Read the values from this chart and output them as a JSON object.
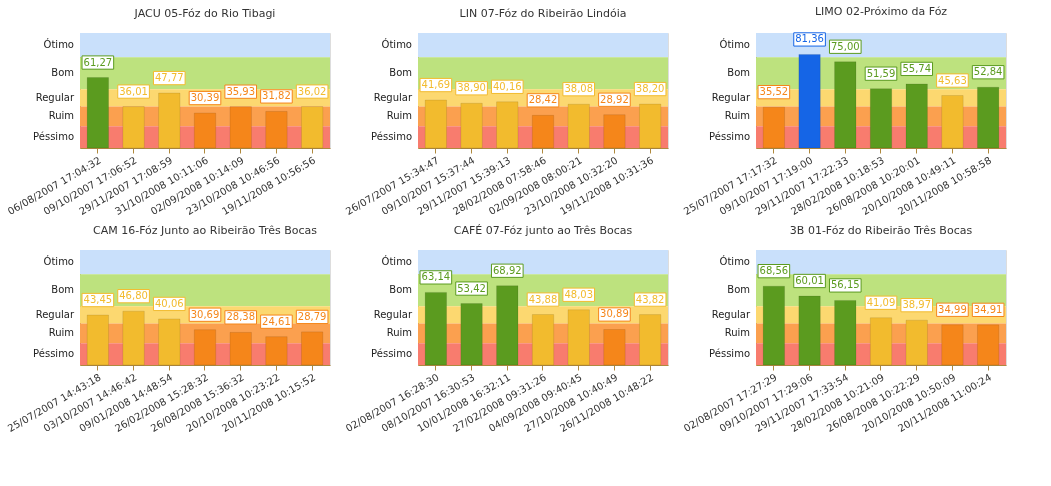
{
  "chart_data": [
    {
      "type": "bar",
      "title": "JACU 05-Fóz do Rio Tibagi",
      "categories": [
        "06/08/2007 17:04:32",
        "09/10/2007 17:06:52",
        "29/11/2007 17:08:59",
        "31/10/2008 10:11:06",
        "02/09/2008 10:14:09",
        "23/10/2008 10:46:56",
        "19/11/2008 10:56:56"
      ],
      "values": [
        61.27,
        36.01,
        47.77,
        30.39,
        35.93,
        31.82,
        36.02
      ],
      "value_labels": [
        "61,27",
        "36,01",
        "47,77",
        "30,39",
        "35,93",
        "31,82",
        "36,02"
      ],
      "colors": [
        "#5b9b1f",
        "#f2bb2e",
        "#f2bb2e",
        "#f5861a",
        "#f5861a",
        "#f5861a",
        "#f2bb2e"
      ],
      "tick_labels": "x",
      "bands": [
        {
          "axis": "y",
          "from": 79,
          "to": 100,
          "label": "Ótimo",
          "color": "#c9e0fb"
        },
        {
          "axis": "y",
          "from": 51,
          "to": 79,
          "label": "Bom",
          "color": "#bde27e"
        },
        {
          "axis": "y",
          "from": 36,
          "to": 51,
          "label": "Regular",
          "color": "#fcd870"
        },
        {
          "axis": "y",
          "from": 19,
          "to": 36,
          "label": "Ruim",
          "color": "#fba04f"
        },
        {
          "axis": "y",
          "from": 0,
          "to": 19,
          "label": "Péssimo",
          "color": "#f87c6e"
        }
      ],
      "grid": false
    },
    {
      "type": "bar",
      "title": "LIN 07-Fóz do Ribeirão Lindóia",
      "categories": [
        "26/07/2007 15:34:47",
        "09/10/2007 15:37:44",
        "29/11/2007 15:39:13",
        "28/02/2008 07:58:46",
        "02/09/2008 08:00:21",
        "23/10/2008 10:32:20",
        "19/11/2008 10:31:36"
      ],
      "values": [
        41.69,
        38.9,
        40.16,
        28.42,
        38.08,
        28.92,
        38.2
      ],
      "value_labels": [
        "41,69",
        "38,90",
        "40,16",
        "28,42",
        "38,08",
        "28,92",
        "38,20"
      ],
      "colors": [
        "#f2bb2e",
        "#f2bb2e",
        "#f2bb2e",
        "#f5861a",
        "#f2bb2e",
        "#f5861a",
        "#f2bb2e"
      ],
      "tick_labels": "x",
      "bands": [
        {
          "axis": "y",
          "from": 79,
          "to": 100,
          "label": "Ótimo",
          "color": "#c9e0fb"
        },
        {
          "axis": "y",
          "from": 51,
          "to": 79,
          "label": "Bom",
          "color": "#bde27e"
        },
        {
          "axis": "y",
          "from": 36,
          "to": 51,
          "label": "Regular",
          "color": "#fcd870"
        },
        {
          "axis": "y",
          "from": 19,
          "to": 36,
          "label": "Ruim",
          "color": "#fba04f"
        },
        {
          "axis": "y",
          "from": 0,
          "to": 19,
          "label": "Péssimo",
          "color": "#f87c6e"
        }
      ],
      "grid": false
    },
    {
      "type": "bar",
      "title": "LIMO 02-Próximo da Fóz",
      "categories": [
        "25/07/2007 17:17:32",
        "09/10/2007 17:19:00",
        "29/11/2007 17:22:33",
        "28/02/2008 10:18:53",
        "26/08/2008 10:20:01",
        "20/10/2008 10:49:11",
        "20/11/2008 10:58:58"
      ],
      "values": [
        35.52,
        81.36,
        75.0,
        51.59,
        55.74,
        45.63,
        52.84
      ],
      "value_labels": [
        "35,52",
        "81,36",
        "75,00",
        "51,59",
        "55,74",
        "45,63",
        "52,84"
      ],
      "colors": [
        "#f5861a",
        "#1565e6",
        "#5b9b1f",
        "#5b9b1f",
        "#5b9b1f",
        "#f2bb2e",
        "#5b9b1f"
      ],
      "tick_labels": "x",
      "bands": [
        {
          "axis": "y",
          "from": 79,
          "to": 100,
          "label": "Ótimo",
          "color": "#c9e0fb"
        },
        {
          "axis": "y",
          "from": 51,
          "to": 79,
          "label": "Bom",
          "color": "#bde27e"
        },
        {
          "axis": "y",
          "from": 36,
          "to": 51,
          "label": "Regular",
          "color": "#fcd870"
        },
        {
          "axis": "y",
          "from": 19,
          "to": 36,
          "label": "Ruim",
          "color": "#fba04f"
        },
        {
          "axis": "y",
          "from": 0,
          "to": 19,
          "label": "Péssimo",
          "color": "#f87c6e"
        }
      ],
      "grid": false
    },
    {
      "type": "bar",
      "title": "CAM 16-Fóz Junto ao Ribeirão Três Bocas",
      "categories": [
        "25/07/2007 14:43:18",
        "03/10/2007 14:46:42",
        "09/01/2008 14:48:54",
        "26/02/2008 15:28:32",
        "26/08/2008 15:36:32",
        "20/10/2008 10:23:22",
        "20/11/2008 10:15:52"
      ],
      "values": [
        43.45,
        46.8,
        40.06,
        30.69,
        28.38,
        24.61,
        28.79
      ],
      "value_labels": [
        "43,45",
        "46,80",
        "40,06",
        "30,69",
        "28,38",
        "24,61",
        "28,79"
      ],
      "colors": [
        "#f2bb2e",
        "#f2bb2e",
        "#f2bb2e",
        "#f5861a",
        "#f5861a",
        "#f5861a",
        "#f5861a"
      ],
      "tick_labels": "x",
      "bands": [
        {
          "axis": "y",
          "from": 79,
          "to": 100,
          "label": "Ótimo",
          "color": "#c9e0fb"
        },
        {
          "axis": "y",
          "from": 51,
          "to": 79,
          "label": "Bom",
          "color": "#bde27e"
        },
        {
          "axis": "y",
          "from": 36,
          "to": 51,
          "label": "Regular",
          "color": "#fcd870"
        },
        {
          "axis": "y",
          "from": 19,
          "to": 36,
          "label": "Ruim",
          "color": "#fba04f"
        },
        {
          "axis": "y",
          "from": 0,
          "to": 19,
          "label": "Péssimo",
          "color": "#f87c6e"
        }
      ],
      "grid": false
    },
    {
      "type": "bar",
      "title": "CAFÉ 07-Fóz junto ao Três Bocas",
      "categories": [
        "02/08/2007 16:28:30",
        "08/10/2007 16:30:53",
        "10/01/2008 16:32:11",
        "27/02/2008 09:31:26",
        "04/09/2008 09:40:45",
        "27/10/2008 10:40:49",
        "26/11/2008 10:48:22"
      ],
      "values": [
        63.14,
        53.42,
        68.92,
        43.88,
        48.03,
        30.89,
        43.82
      ],
      "value_labels": [
        "63,14",
        "53,42",
        "68,92",
        "43,88",
        "48,03",
        "30,89",
        "43,82"
      ],
      "colors": [
        "#5b9b1f",
        "#5b9b1f",
        "#5b9b1f",
        "#f2bb2e",
        "#f2bb2e",
        "#f5861a",
        "#f2bb2e"
      ],
      "tick_labels": "x",
      "bands": [
        {
          "axis": "y",
          "from": 79,
          "to": 100,
          "label": "Ótimo",
          "color": "#c9e0fb"
        },
        {
          "axis": "y",
          "from": 51,
          "to": 79,
          "label": "Bom",
          "color": "#bde27e"
        },
        {
          "axis": "y",
          "from": 36,
          "to": 51,
          "label": "Regular",
          "color": "#fcd870"
        },
        {
          "axis": "y",
          "from": 19,
          "to": 36,
          "label": "Ruim",
          "color": "#fba04f"
        },
        {
          "axis": "y",
          "from": 0,
          "to": 19,
          "label": "Péssimo",
          "color": "#f87c6e"
        }
      ],
      "grid": false
    },
    {
      "type": "bar",
      "title": "3B 01-Fóz do Ribeirão Três Bocas",
      "categories": [
        "02/08/2007 17:27:29",
        "09/10/2007 17:29:06",
        "29/11/2007 17:33:54",
        "28/02/2008 10:21:09",
        "26/08/2008 10:22:29",
        "20/10/2008 10:50:09",
        "20/11/2008 11:00:24"
      ],
      "values": [
        68.56,
        60.01,
        56.15,
        41.09,
        38.97,
        34.99,
        34.91
      ],
      "value_labels": [
        "68,56",
        "60,01",
        "56,15",
        "41,09",
        "38,97",
        "34,99",
        "34,91"
      ],
      "colors": [
        "#5b9b1f",
        "#5b9b1f",
        "#5b9b1f",
        "#f2bb2e",
        "#f2bb2e",
        "#f5861a",
        "#f5861a"
      ],
      "tick_labels": "x",
      "bands": [
        {
          "axis": "y",
          "from": 79,
          "to": 100,
          "label": "Ótimo",
          "color": "#c9e0fb"
        },
        {
          "axis": "y",
          "from": 51,
          "to": 79,
          "label": "Bom",
          "color": "#bde27e"
        },
        {
          "axis": "y",
          "from": 36,
          "to": 51,
          "label": "Regular",
          "color": "#fcd870"
        },
        {
          "axis": "y",
          "from": 19,
          "to": 36,
          "label": "Ruim",
          "color": "#fba04f"
        },
        {
          "axis": "y",
          "from": 0,
          "to": 19,
          "label": "Péssimo",
          "color": "#f87c6e"
        }
      ],
      "grid": false
    }
  ]
}
